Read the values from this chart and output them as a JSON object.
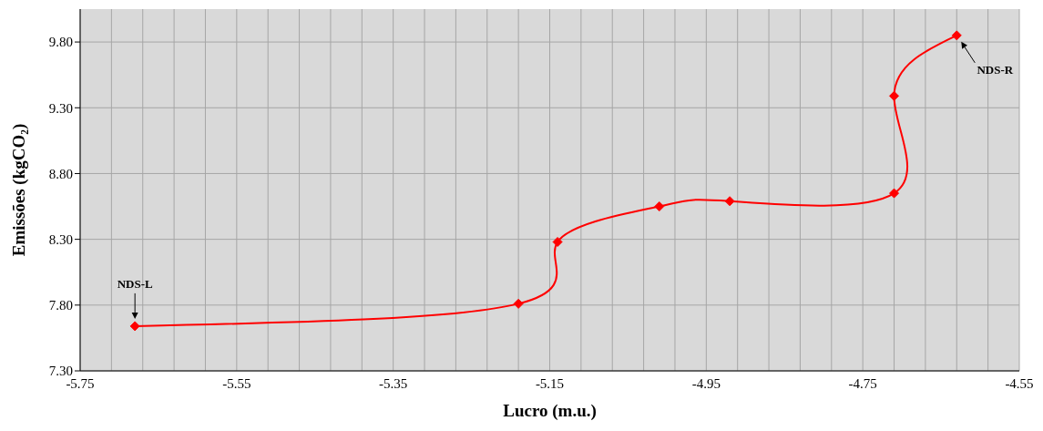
{
  "chart_data": {
    "type": "line",
    "xlabel": "Lucro (m.u.)",
    "ylabel": "Emissões (kgCO₂)",
    "x": [
      -5.68,
      -5.19,
      -5.14,
      -5.01,
      -4.92,
      -4.71,
      -4.71,
      -4.63
    ],
    "series": [
      {
        "color": "#ff0000",
        "values": [
          7.64,
          7.81,
          8.28,
          8.55,
          8.59,
          8.65,
          9.39,
          9.85
        ]
      }
    ],
    "xlim": [
      -5.75,
      -4.55
    ],
    "xticks": [
      -5.75,
      {
        "value": -5.71,
        "label": null
      },
      {
        "value": -5.67,
        "label": null
      },
      {
        "value": -5.63,
        "label": null
      },
      {
        "value": -5.59,
        "label": null
      },
      -5.55,
      {
        "value": -5.51,
        "label": null
      },
      {
        "value": -5.47,
        "label": null
      },
      {
        "value": -5.43,
        "label": null
      },
      {
        "value": -5.39,
        "label": null
      },
      -5.35,
      {
        "value": -5.31,
        "label": null
      },
      {
        "value": -5.27,
        "label": null
      },
      {
        "value": -5.23,
        "label": null
      },
      {
        "value": -5.19,
        "label": null
      },
      -5.15,
      {
        "value": -5.11,
        "label": null
      },
      {
        "value": -5.07,
        "label": null
      },
      {
        "value": -5.03,
        "label": null
      },
      {
        "value": -4.99,
        "label": null
      },
      -4.95,
      {
        "value": -4.91,
        "label": null
      },
      {
        "value": -4.87,
        "label": null
      },
      {
        "value": -4.83,
        "label": null
      },
      {
        "value": -4.79,
        "label": null
      },
      -4.75,
      {
        "value": -4.71,
        "label": null
      },
      {
        "value": -4.67,
        "label": null
      },
      {
        "value": -4.63,
        "label": null
      },
      {
        "value": -4.59,
        "label": null
      },
      -4.55
    ],
    "ylim": [
      7.3,
      10.05
    ],
    "yticks": [
      {
        "value": 7.3,
        "label": "7.30"
      },
      {
        "value": 7.8,
        "label": "7.80"
      },
      {
        "value": 8.3,
        "label": "8.30"
      },
      {
        "value": 8.8,
        "label": "8.80"
      },
      {
        "value": 9.3,
        "label": "9.30"
      },
      {
        "value": 9.8,
        "label": "9.80"
      }
    ],
    "grid": true,
    "marker": "diamond",
    "line_style": "solid",
    "legend": false,
    "annotations": [
      {
        "text": "NDS-L",
        "x": -5.68,
        "y": 7.64
      },
      {
        "text": "NDS-R",
        "x": -4.63,
        "y": 9.85
      }
    ]
  }
}
